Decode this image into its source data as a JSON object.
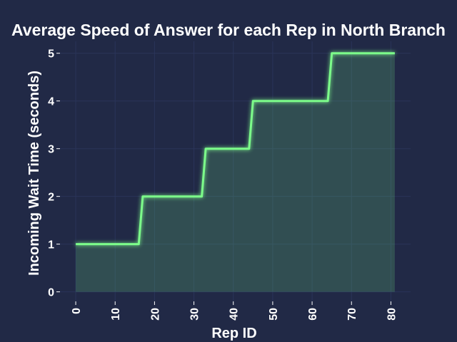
{
  "chart_data": {
    "type": "line",
    "step": true,
    "title": "Average Speed of Answer for each Rep in North Branch",
    "xlabel": "Rep ID",
    "ylabel": "Incoming Wait Time (seconds)",
    "xlim": [
      -4,
      85
    ],
    "ylim": [
      -0.2,
      5.25
    ],
    "xticks": [
      0,
      10,
      20,
      30,
      40,
      50,
      60,
      70,
      80
    ],
    "yticks": [
      0,
      1,
      2,
      3,
      4,
      5
    ],
    "grid": true,
    "series": [
      {
        "x": [
          0,
          16,
          17,
          32,
          33,
          44,
          45,
          64,
          65,
          81
        ],
        "y": [
          1,
          1,
          2,
          2,
          3,
          3,
          4,
          4,
          5,
          5
        ],
        "color": "#7CFC8A",
        "fill": true
      }
    ]
  }
}
